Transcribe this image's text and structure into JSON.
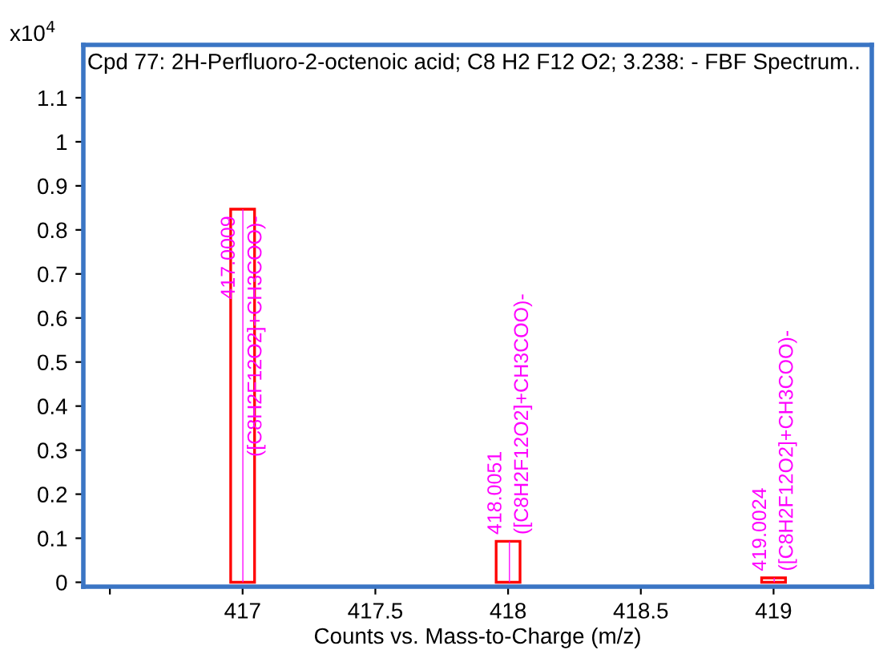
{
  "chart_data": {
    "type": "bar",
    "title": "Cpd 77: 2H-Perfluoro-2-octenoic acid; C8 H2 F12 O2; 3.238: - FBF Spectrum..",
    "xlabel": "Counts vs. Mass-to-Charge (m/z)",
    "series": [
      {
        "color": "#ff0000",
        "x": [
          417.0,
          418.0,
          419.0
        ],
        "values": [
          0.847,
          0.093,
          0.01
        ]
      },
      {
        "type": "bar",
        "color": "#ff00ff",
        "x": [
          417.0009,
          418.0051,
          419.0024
        ],
        "values": [
          0.847,
          0.093,
          0.01
        ]
      }
    ],
    "annotations": [
      "x10$^{4}$",
      {
        "text": "417.0009",
        "x": 417.0009,
        "y": 0.847
      },
      {
        "text": "([C8H2F12O2]+CH3COO)-",
        "x": 417.0009,
        "y": 0.847
      },
      {
        "text": "418.0051",
        "x": 418.0051,
        "y": 0.093
      },
      {
        "text": "([C8H2F12O2]+CH3COO)-",
        "x": 418.0051,
        "y": 0.093
      },
      {
        "text": "419.0024",
        "x": 419.0024,
        "y": 0.01
      },
      {
        "text": "([C8H2F12O2]+CH3COO)-",
        "x": 419.0024,
        "y": 0.01
      }
    ],
    "xlim": [
      416.4,
      419.37
    ],
    "ylim": [
      -0.01,
      1.22
    ],
    "xticks": [
      {
        "value": 416.5,
        "label": null
      },
      417,
      417.5,
      418,
      418.5,
      419
    ],
    "yticks": [
      0,
      0.1,
      0.2,
      0.3,
      0.4,
      0.5,
      0.6,
      0.7,
      0.8,
      0.9,
      1,
      1.1
    ],
    "grid": false,
    "legend": false
  }
}
